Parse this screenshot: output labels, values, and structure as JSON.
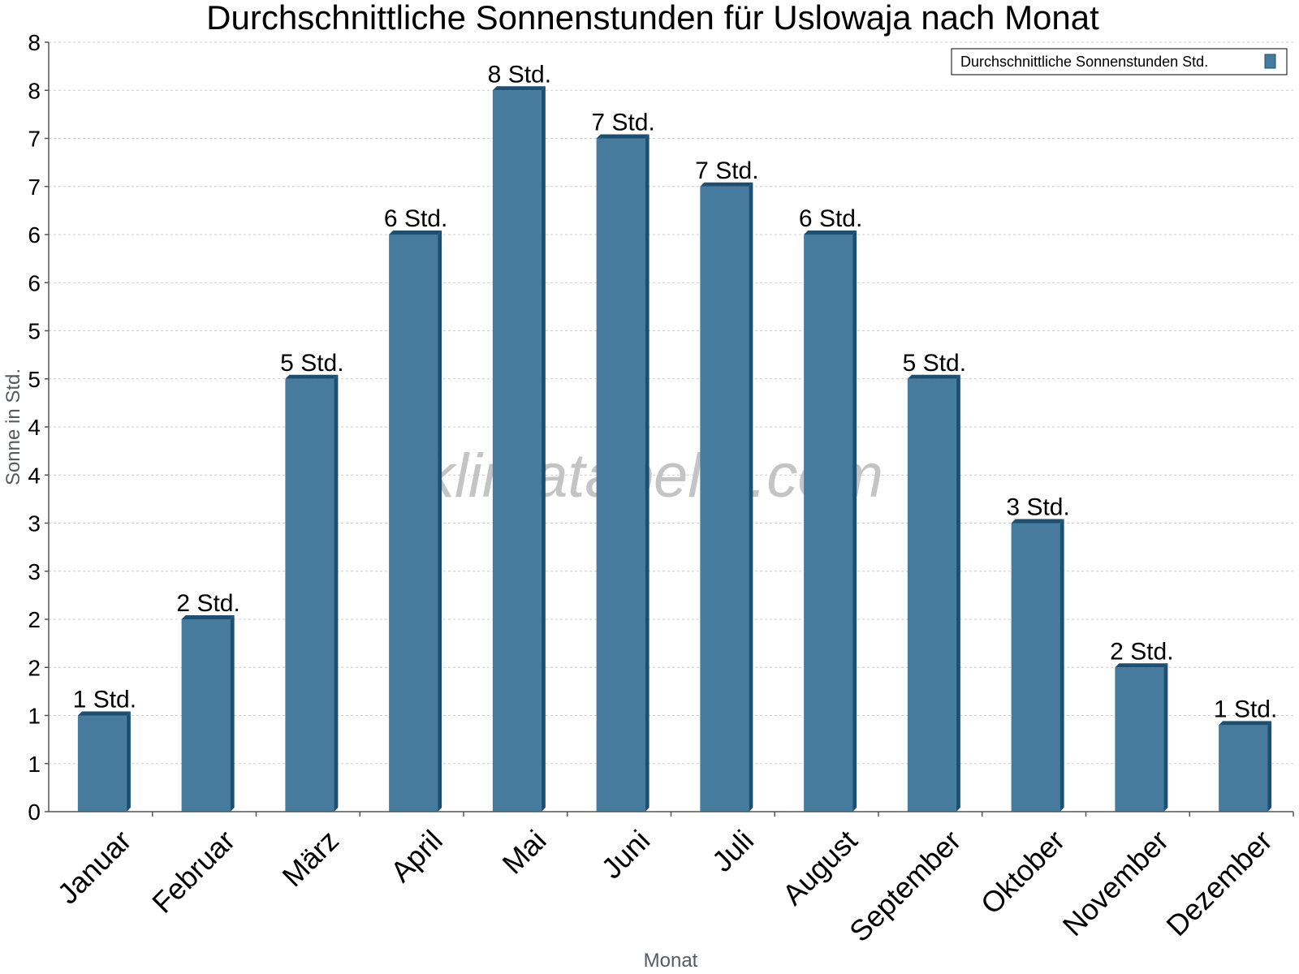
{
  "chart_data": {
    "type": "bar",
    "title": "Durchschnittliche Sonnenstunden für Uslowaja nach Monat",
    "xlabel": "Monat",
    "ylabel": "Sonne in Std.",
    "categories": [
      "Januar",
      "Februar",
      "März",
      "April",
      "Mai",
      "Juni",
      "Juli",
      "August",
      "September",
      "Oktober",
      "November",
      "Dezember"
    ],
    "series": [
      {
        "name": "Durchschnittliche Sonnenstunden Std.",
        "values": [
          1.0,
          2.0,
          4.5,
          6.0,
          7.5,
          7.0,
          6.5,
          6.0,
          4.5,
          3.0,
          1.5,
          0.9
        ],
        "labels": [
          "1 Std.",
          "2 Std.",
          "5 Std.",
          "6 Std.",
          "8 Std.",
          "7 Std.",
          "7 Std.",
          "6 Std.",
          "5 Std.",
          "3 Std.",
          "2 Std.",
          "1 Std."
        ]
      }
    ],
    "ylim": [
      0,
      8
    ],
    "yticks": [
      0,
      0.5,
      1,
      1.5,
      2,
      2.5,
      3,
      3.5,
      4,
      4.5,
      5,
      5.5,
      6,
      6.5,
      7,
      7.5,
      8
    ],
    "ytick_labels": [
      "0",
      "1",
      "1",
      "2",
      "2",
      "3",
      "3",
      "4",
      "4",
      "5",
      "5",
      "6",
      "6",
      "7",
      "7",
      "8",
      "8"
    ],
    "grid": true,
    "legend_position": "top-right",
    "watermark": "klimatabelle.com",
    "colors": {
      "bar": "#467b9e",
      "bar_side": "#1c4f72",
      "bar_top": "#1c4f72",
      "grid": "#cccccc"
    }
  }
}
